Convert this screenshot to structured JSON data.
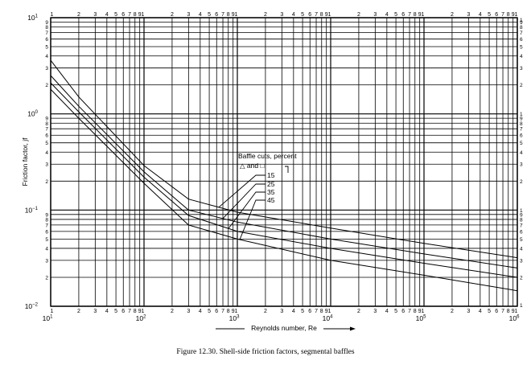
{
  "chart_data": {
    "type": "line",
    "title": "",
    "xlabel": "Reynolds number, Re",
    "ylabel": "Friction factor, jf",
    "xscale": "log",
    "yscale": "log",
    "xlim": [
      10,
      1000000
    ],
    "ylim": [
      0.01,
      10
    ],
    "grid": true,
    "x_decade_labels": [
      {
        "base": "10",
        "exp": "1"
      },
      {
        "base": "10",
        "exp": "2"
      },
      {
        "base": "10",
        "exp": "3"
      },
      {
        "base": "10",
        "exp": "4"
      },
      {
        "base": "10",
        "exp": "5"
      },
      {
        "base": "10",
        "exp": "6"
      }
    ],
    "y_decade_labels": [
      {
        "base": "10",
        "exp": "1",
        "sign": ""
      },
      {
        "base": "10",
        "exp": "0",
        "sign": ""
      },
      {
        "base": "10",
        "exp": "1",
        "sign": "−"
      },
      {
        "base": "10",
        "exp": "2",
        "sign": "−"
      }
    ],
    "cycle_tick_labels": [
      "1",
      "2",
      "3",
      "4",
      "5",
      "6",
      "7",
      "8",
      "9",
      "1"
    ],
    "annotation": {
      "title": "Baffle cuts, percent",
      "marker_text": "△ and □"
    },
    "series": [
      {
        "name": "15",
        "x": [
          10,
          20,
          100,
          300,
          1000,
          10000,
          100000,
          1000000
        ],
        "y": [
          3.6,
          1.5,
          0.29,
          0.13,
          0.095,
          0.065,
          0.045,
          0.032
        ]
      },
      {
        "name": "25",
        "x": [
          10,
          20,
          100,
          300,
          1000,
          10000,
          100000,
          1000000
        ],
        "y": [
          2.5,
          1.2,
          0.25,
          0.1,
          0.075,
          0.05,
          0.035,
          0.025
        ]
      },
      {
        "name": "35",
        "x": [
          10,
          20,
          100,
          300,
          1000,
          10000,
          100000,
          1000000
        ],
        "y": [
          2.1,
          1.05,
          0.22,
          0.088,
          0.06,
          0.04,
          0.028,
          0.02
        ]
      },
      {
        "name": "45",
        "x": [
          10,
          20,
          100,
          300,
          1000,
          10000,
          100000,
          1000000
        ],
        "y": [
          1.8,
          0.9,
          0.19,
          0.07,
          0.05,
          0.03,
          0.021,
          0.0145
        ]
      }
    ]
  },
  "caption": "Figure 12.30.   Shell-side friction factors, segmental baffles"
}
